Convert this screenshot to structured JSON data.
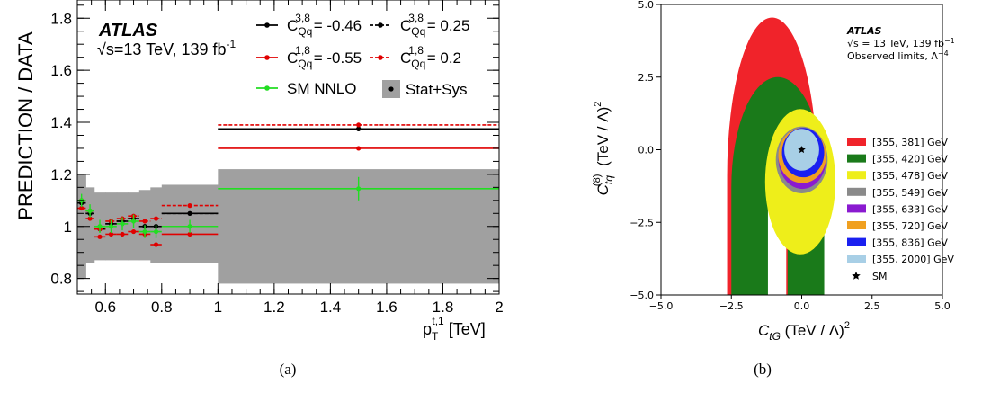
{
  "panel_labels": [
    "(a)",
    "(b)"
  ],
  "colors": {
    "black": "#000000",
    "red": "#e00000",
    "green": "#22dd22",
    "band": "#a0a0a0",
    "region_355_381": "#f0232a",
    "region_355_420": "#1a7a1a",
    "region_355_478": "#eeee1a",
    "region_355_549": "#8a8a8a",
    "region_355_633": "#8a1ad0",
    "region_355_720": "#f0a020",
    "region_355_836": "#1a20f0",
    "region_355_2000": "#a8cfe6"
  },
  "chart_data": [
    {
      "type": "line",
      "panel": "(a)",
      "experiment": "ATLAS",
      "energy_label": "√s=13 TeV, 139 fb",
      "energy_sup": "-1",
      "ylabel": "PREDICTION / DATA",
      "xlabel_main": "p",
      "xlabel_sub": "T",
      "xlabel_sup": "t,1",
      "xlabel_unit": " [TeV]",
      "xlim": [
        0.5,
        2.0
      ],
      "ylim": [
        0.74,
        1.87
      ],
      "xticks": [
        "0.6",
        "0.8",
        "1",
        "1.2",
        "1.4",
        "1.6",
        "1.8",
        "2"
      ],
      "yticks": [
        "0.8",
        "1",
        "1.2",
        "1.4",
        "1.6",
        "1.8"
      ],
      "bin_edges": [
        0.5,
        0.53,
        0.56,
        0.6,
        0.64,
        0.68,
        0.72,
        0.76,
        0.8,
        1.0,
        2.0
      ],
      "series": [
        {
          "label_main": "C",
          "label_sub": "Qq",
          "label_sup": "3,8",
          "label_value": " = -0.46",
          "color_key": "black",
          "dashed": false,
          "values": [
            1.09,
            1.05,
            0.99,
            1.01,
            1.02,
            1.03,
            1.0,
            1.0,
            1.05,
            1.375
          ]
        },
        {
          "label_main": "C",
          "label_sub": "Qq",
          "label_sup": "3,8",
          "label_value": " = 0.25",
          "color_key": "black",
          "dashed": true,
          "values": [
            1.09,
            1.05,
            0.99,
            1.01,
            1.02,
            1.03,
            1.0,
            1.0,
            1.05,
            1.375
          ]
        },
        {
          "label_main": "C",
          "label_sub": "Qq",
          "label_sup": "1,8",
          "label_value": " = -0.55",
          "color_key": "red",
          "dashed": false,
          "values": [
            1.07,
            1.03,
            0.96,
            0.97,
            0.97,
            0.98,
            0.97,
            0.93,
            0.97,
            1.3
          ]
        },
        {
          "label_main": "C",
          "label_sub": "Qq",
          "label_sup": "1,8",
          "label_value": " = 0.2",
          "color_key": "red",
          "dashed": true,
          "values": [
            1.1,
            1.06,
            0.99,
            1.02,
            1.03,
            1.04,
            1.02,
            1.03,
            1.08,
            1.39
          ]
        },
        {
          "label_main": "SM NNLO",
          "color_key": "green",
          "dashed": false,
          "values": [
            1.1,
            1.06,
            1.0,
            1.0,
            1.01,
            1.02,
            0.98,
            0.98,
            1.0,
            1.145
          ]
        }
      ],
      "band": {
        "label": "Stat+Sys",
        "lo": [
          0.8,
          0.86,
          0.87,
          0.87,
          0.87,
          0.87,
          0.87,
          0.86,
          0.86,
          0.78
        ],
        "hi": [
          1.2,
          1.15,
          1.13,
          1.13,
          1.13,
          1.13,
          1.14,
          1.15,
          1.16,
          1.22
        ]
      }
    },
    {
      "type": "area",
      "panel": "(b)",
      "experiment": "ATLAS",
      "energy_label": "√s = 13 TeV, 139 fb",
      "energy_sup": "−1",
      "limit_label": "Observed limits, Λ",
      "limit_sup": "−4",
      "xlabel_main": "C",
      "xlabel_sub": "tG",
      "xlabel_unit": " (TeV / Λ)",
      "xlabel_sup": "2",
      "ylabel_main": "C",
      "ylabel_sub": "tq",
      "ylabel_sup": "(8)",
      "ylabel_unit": " (TeV / Λ)",
      "ylabel_unit_sup": "2",
      "xlim": [
        -5.0,
        5.0
      ],
      "ylim": [
        -5.0,
        5.0
      ],
      "xticks": [
        "−5.0",
        "−2.5",
        "0.0",
        "2.5",
        "5.0"
      ],
      "yticks": [
        "−5.0",
        "−2.5",
        "0.0",
        "2.5",
        "5.0"
      ],
      "regions": [
        {
          "label": "[355, 381] GeV",
          "color_key": "region_355_381"
        },
        {
          "label": "[355, 420] GeV",
          "color_key": "region_355_420"
        },
        {
          "label": "[355, 478] GeV",
          "color_key": "region_355_478"
        },
        {
          "label": "[355, 549] GeV",
          "color_key": "region_355_549"
        },
        {
          "label": "[355, 633] GeV",
          "color_key": "region_355_633"
        },
        {
          "label": "[355, 720] GeV",
          "color_key": "region_355_720"
        },
        {
          "label": "[355, 836] GeV",
          "color_key": "region_355_836"
        },
        {
          "label": "[355, 2000] GeV",
          "color_key": "region_355_2000"
        }
      ],
      "sm_label": "SM",
      "sm_point": [
        0.0,
        0.0
      ]
    }
  ]
}
